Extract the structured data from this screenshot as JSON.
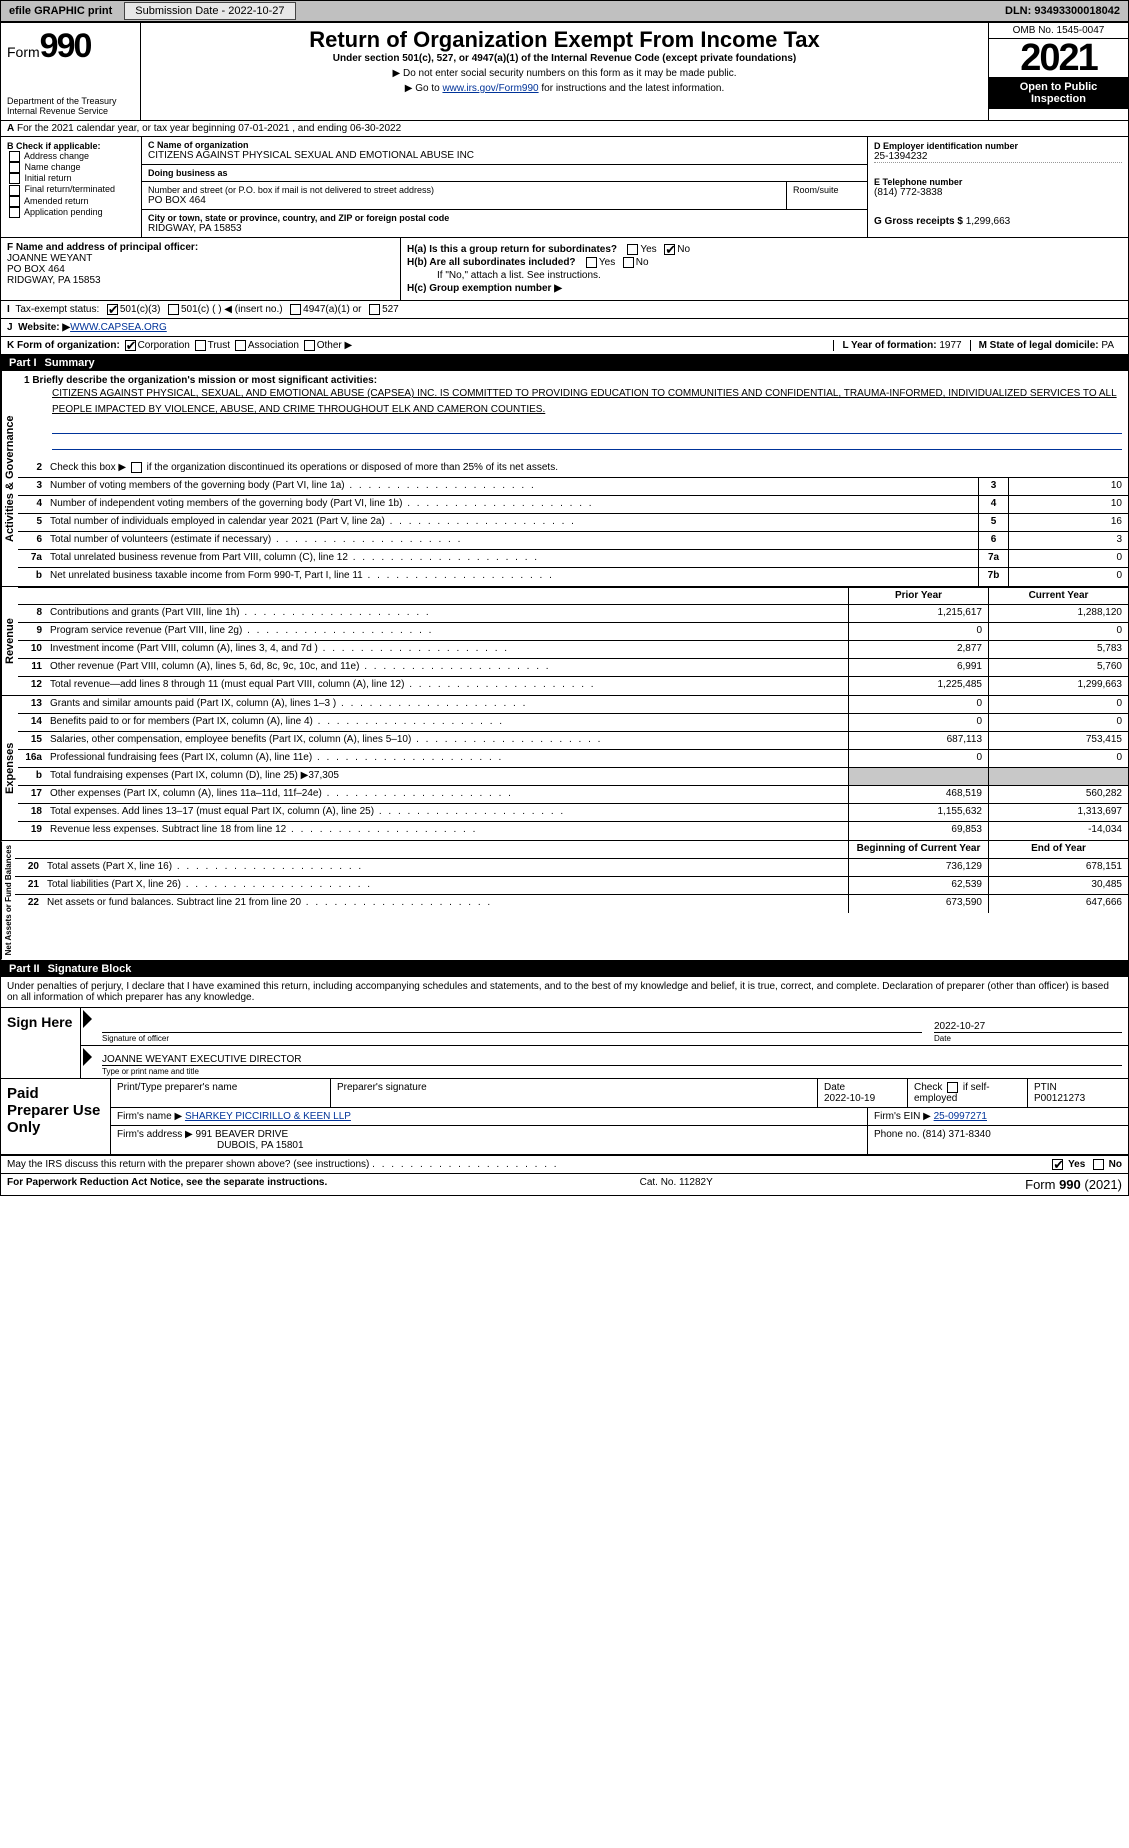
{
  "topbar": {
    "efile": "efile GRAPHIC print",
    "submission_btn": "Submission Date - 2022-10-27",
    "dln": "DLN: 93493300018042"
  },
  "header": {
    "form_prefix": "Form",
    "form_number": "990",
    "title": "Return of Organization Exempt From Income Tax",
    "subtitle": "Under section 501(c), 527, or 4947(a)(1) of the Internal Revenue Code (except private foundations)",
    "note1": "▶ Do not enter social security numbers on this form as it may be made public.",
    "note2_pre": "▶ Go to ",
    "note2_link": "www.irs.gov/Form990",
    "note2_post": " for instructions and the latest information.",
    "dept": "Department of the Treasury Internal Revenue Service",
    "omb": "OMB No. 1545-0047",
    "year": "2021",
    "open_pub": "Open to Public Inspection"
  },
  "row_a": "For the 2021 calendar year, or tax year beginning 07-01-2021    , and ending 06-30-2022",
  "col_b": {
    "label": "B Check if applicable:",
    "items": [
      "Address change",
      "Name change",
      "Initial return",
      "Final return/terminated",
      "Amended return",
      "Application pending"
    ]
  },
  "col_c": {
    "name_lab": "C Name of organization",
    "name": "CITIZENS AGAINST PHYSICAL SEXUAL AND EMOTIONAL ABUSE INC",
    "dba_lab": "Doing business as",
    "dba": "",
    "addr_lab": "Number and street (or P.O. box if mail is not delivered to street address)",
    "room_lab": "Room/suite",
    "addr": "PO BOX 464",
    "city_lab": "City or town, state or province, country, and ZIP or foreign postal code",
    "city": "RIDGWAY, PA  15853"
  },
  "col_d": {
    "ein_lab": "D Employer identification number",
    "ein": "25-1394232",
    "tel_lab": "E Telephone number",
    "tel": "(814) 772-3838",
    "gross_lab": "G Gross receipts $",
    "gross": "1,299,663"
  },
  "col_f": {
    "lab": "F  Name and address of principal officer:",
    "name": "JOANNE WEYANT",
    "addr1": "PO BOX 464",
    "addr2": "RIDGWAY, PA  15853"
  },
  "col_h": {
    "ha": "H(a)  Is this a group return for subordinates?",
    "hb": "H(b)  Are all subordinates included?",
    "hb_note": "If \"No,\" attach a list. See instructions.",
    "hc": "H(c)  Group exemption number ▶",
    "yes": "Yes",
    "no": "No"
  },
  "row_i": {
    "lab": "Tax-exempt status:",
    "o1": "501(c)(3)",
    "o2": "501(c) (   ) ◀ (insert no.)",
    "o3": "4947(a)(1) or",
    "o4": "527"
  },
  "row_j": {
    "lab": "Website: ▶",
    "val": " WWW.CAPSEA.ORG"
  },
  "row_k": {
    "lab": "K Form of organization:",
    "o1": "Corporation",
    "o2": "Trust",
    "o3": "Association",
    "o4": "Other ▶"
  },
  "row_l": {
    "yof_lab": "L Year of formation:",
    "yof": "1977",
    "state_lab": "M State of legal domicile:",
    "state": "PA"
  },
  "part1": {
    "num": "Part I",
    "title": "Summary"
  },
  "mission": {
    "q1": "1  Briefly describe the organization's mission or most significant activities:",
    "text": "CITIZENS AGAINST PHYSICAL, SEXUAL, AND EMOTIONAL ABUSE (CAPSEA) INC. IS COMMITTED TO PROVIDING EDUCATION TO COMMUNITIES AND CONFIDENTIAL, TRAUMA-INFORMED, INDIVIDUALIZED SERVICES TO ALL PEOPLE IMPACTED BY VIOLENCE, ABUSE, AND CRIME THROUGHOUT ELK AND CAMERON COUNTIES."
  },
  "gov": {
    "side": "Activities & Governance",
    "q2": "Check this box ▶      if the organization discontinued its operations or disposed of more than 25% of its net assets.",
    "lines": [
      {
        "n": "3",
        "t": "Number of voting members of the governing body (Part VI, line 1a)",
        "c": "3",
        "v": "10"
      },
      {
        "n": "4",
        "t": "Number of independent voting members of the governing body (Part VI, line 1b)",
        "c": "4",
        "v": "10"
      },
      {
        "n": "5",
        "t": "Total number of individuals employed in calendar year 2021 (Part V, line 2a)",
        "c": "5",
        "v": "16"
      },
      {
        "n": "6",
        "t": "Total number of volunteers (estimate if necessary)",
        "c": "6",
        "v": "3"
      },
      {
        "n": "7a",
        "t": "Total unrelated business revenue from Part VIII, column (C), line 12",
        "c": "7a",
        "v": "0"
      },
      {
        "n": "b",
        "t": "Net unrelated business taxable income from Form 990-T, Part I, line 11",
        "c": "7b",
        "v": "0"
      }
    ]
  },
  "py_cy": {
    "py": "Prior Year",
    "cy": "Current Year"
  },
  "rev": {
    "side": "Revenue",
    "lines": [
      {
        "n": "8",
        "t": "Contributions and grants (Part VIII, line 1h)",
        "p": "1,215,617",
        "c": "1,288,120"
      },
      {
        "n": "9",
        "t": "Program service revenue (Part VIII, line 2g)",
        "p": "0",
        "c": "0"
      },
      {
        "n": "10",
        "t": "Investment income (Part VIII, column (A), lines 3, 4, and 7d )",
        "p": "2,877",
        "c": "5,783"
      },
      {
        "n": "11",
        "t": "Other revenue (Part VIII, column (A), lines 5, 6d, 8c, 9c, 10c, and 11e)",
        "p": "6,991",
        "c": "5,760"
      },
      {
        "n": "12",
        "t": "Total revenue—add lines 8 through 11 (must equal Part VIII, column (A), line 12)",
        "p": "1,225,485",
        "c": "1,299,663"
      }
    ]
  },
  "exp": {
    "side": "Expenses",
    "lines": [
      {
        "n": "13",
        "t": "Grants and similar amounts paid (Part IX, column (A), lines 1–3 )",
        "p": "0",
        "c": "0"
      },
      {
        "n": "14",
        "t": "Benefits paid to or for members (Part IX, column (A), line 4)",
        "p": "0",
        "c": "0"
      },
      {
        "n": "15",
        "t": "Salaries, other compensation, employee benefits (Part IX, column (A), lines 5–10)",
        "p": "687,113",
        "c": "753,415"
      },
      {
        "n": "16a",
        "t": "Professional fundraising fees (Part IX, column (A), line 11e)",
        "p": "0",
        "c": "0"
      },
      {
        "n": "b",
        "t": "Total fundraising expenses (Part IX, column (D), line 25) ▶37,305",
        "p": "",
        "c": "",
        "shade": true
      },
      {
        "n": "17",
        "t": "Other expenses (Part IX, column (A), lines 11a–11d, 11f–24e)",
        "p": "468,519",
        "c": "560,282"
      },
      {
        "n": "18",
        "t": "Total expenses. Add lines 13–17 (must equal Part IX, column (A), line 25)",
        "p": "1,155,632",
        "c": "1,313,697"
      },
      {
        "n": "19",
        "t": "Revenue less expenses. Subtract line 18 from line 12",
        "p": "69,853",
        "c": "-14,034"
      }
    ]
  },
  "na": {
    "side": "Net Assets or Fund Balances",
    "hdr_p": "Beginning of Current Year",
    "hdr_c": "End of Year",
    "lines": [
      {
        "n": "20",
        "t": "Total assets (Part X, line 16)",
        "p": "736,129",
        "c": "678,151"
      },
      {
        "n": "21",
        "t": "Total liabilities (Part X, line 26)",
        "p": "62,539",
        "c": "30,485"
      },
      {
        "n": "22",
        "t": "Net assets or fund balances. Subtract line 21 from line 20",
        "p": "673,590",
        "c": "647,666"
      }
    ]
  },
  "part2": {
    "num": "Part II",
    "title": "Signature Block"
  },
  "sig": {
    "intro": "Under penalties of perjury, I declare that I have examined this return, including accompanying schedules and statements, and to the best of my knowledge and belief, it is true, correct, and complete. Declaration of preparer (other than officer) is based on all information of which preparer has any knowledge.",
    "sign_here": "Sign Here",
    "sig_lab": "Signature of officer",
    "date_lab": "Date",
    "date": "2022-10-27",
    "name": "JOANNE WEYANT  EXECUTIVE DIRECTOR",
    "name_lab": "Type or print name and title"
  },
  "prep": {
    "title": "Paid Preparer Use Only",
    "h1": "Print/Type preparer's name",
    "h2": "Preparer's signature",
    "h3": "Date",
    "h4": "Check         if self-employed",
    "h5": "PTIN",
    "date": "2022-10-19",
    "ptin": "P00121273",
    "firm_lab": "Firm's name    ▶",
    "firm": "SHARKEY PICCIRILLO & KEEN LLP",
    "ein_lab": "Firm's EIN ▶",
    "ein": "25-0997271",
    "addr_lab": "Firm's address ▶",
    "addr1": "991 BEAVER DRIVE",
    "addr2": "DUBOIS, PA  15801",
    "phone_lab": "Phone no.",
    "phone": "(814) 371-8340"
  },
  "discuss": "May the IRS discuss this return with the preparer shown above? (see instructions)",
  "footer": {
    "pra": "For Paperwork Reduction Act Notice, see the separate instructions.",
    "cat": "Cat. No. 11282Y",
    "form": "Form 990 (2021)"
  }
}
